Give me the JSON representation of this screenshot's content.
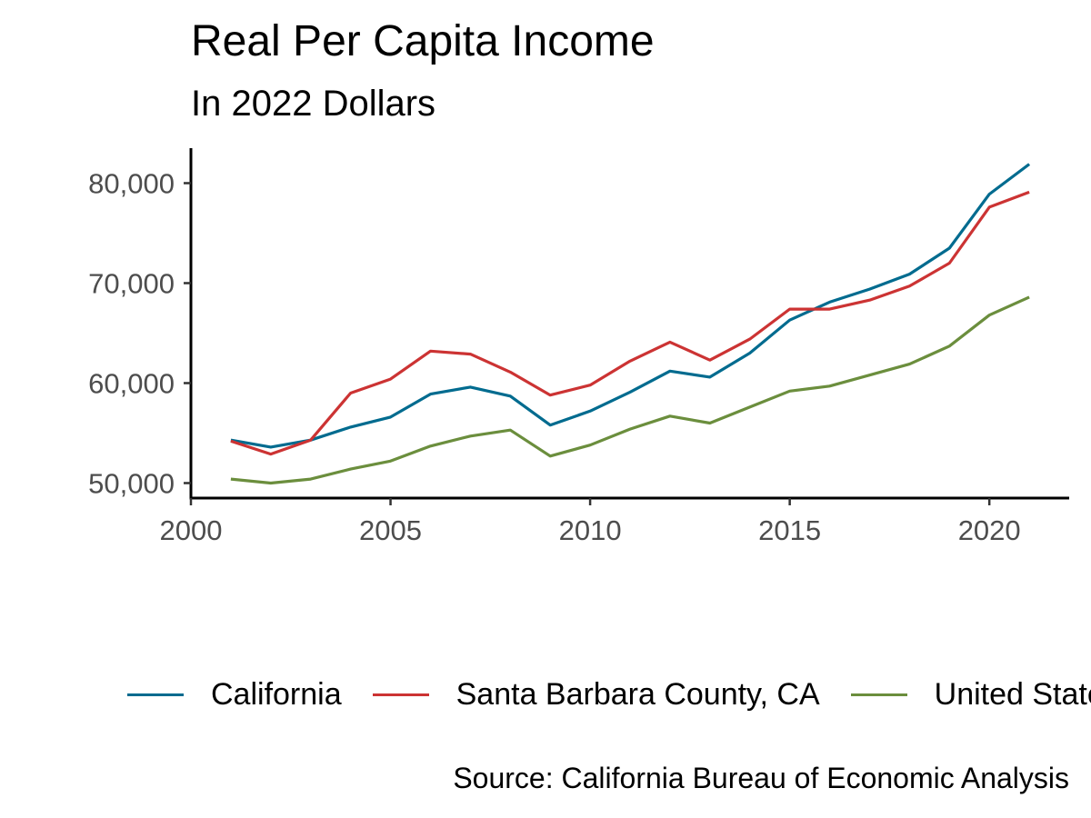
{
  "chart_data": {
    "type": "line",
    "title": "Real Per Capita Income",
    "subtitle": "In 2022 Dollars",
    "caption": "Source: California Bureau of Economic Analysis",
    "xlabel": "",
    "ylabel": "",
    "x": [
      2001,
      2002,
      2003,
      2004,
      2005,
      2006,
      2007,
      2008,
      2009,
      2010,
      2011,
      2012,
      2013,
      2014,
      2015,
      2016,
      2017,
      2018,
      2019,
      2020,
      2021
    ],
    "xlim": [
      2000,
      2022
    ],
    "ylim": [
      48500,
      83500
    ],
    "x_ticks": [
      2000,
      2005,
      2010,
      2015,
      2020
    ],
    "x_tick_labels": [
      "2000",
      "2005",
      "2010",
      "2015",
      "2020"
    ],
    "y_ticks": [
      50000,
      60000,
      70000,
      80000
    ],
    "y_tick_labels": [
      "50,000",
      "60,000",
      "70,000",
      "80,000"
    ],
    "grid": false,
    "legend_position": "bottom",
    "series": [
      {
        "name": "California",
        "color": "#006b8f",
        "values": [
          54300,
          53600,
          54300,
          55600,
          56600,
          58900,
          59600,
          58700,
          55800,
          57200,
          59100,
          61200,
          60600,
          63000,
          66300,
          68100,
          69400,
          70900,
          73500,
          78900,
          81900
        ]
      },
      {
        "name": "Santa Barbara County, CA",
        "color": "#cc3333",
        "values": [
          54200,
          52900,
          54300,
          59000,
          60400,
          63200,
          62900,
          61100,
          58800,
          59800,
          62200,
          64100,
          62300,
          64400,
          67400,
          67400,
          68300,
          69700,
          72000,
          77600,
          79100
        ]
      },
      {
        "name": "United States",
        "color": "#6b8e3d",
        "values": [
          50400,
          50000,
          50400,
          51400,
          52200,
          53700,
          54700,
          55300,
          52700,
          53800,
          55400,
          56700,
          56000,
          57600,
          59200,
          59700,
          60800,
          61900,
          63700,
          66800,
          68600
        ]
      }
    ]
  }
}
